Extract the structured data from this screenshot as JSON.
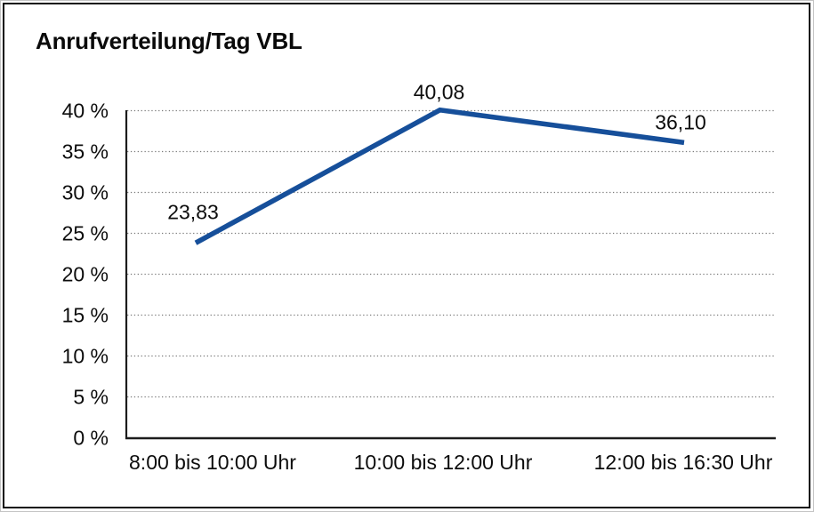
{
  "chart_data": {
    "type": "line",
    "title": "Anrufverteilung/Tag VBL",
    "categories": [
      "8:00 bis 10:00 Uhr",
      "10:00 bis 12:00 Uhr",
      "12:00 bis 16:30 Uhr"
    ],
    "values": [
      23.83,
      40.08,
      36.1
    ],
    "value_labels": [
      "23,83",
      "40,08",
      "36,10"
    ],
    "y_ticks": [
      "0 %",
      "5 %",
      "10 %",
      "15 %",
      "20 %",
      "25 %",
      "30 %",
      "35 %",
      "40 %"
    ],
    "ylim": [
      0,
      40
    ],
    "y_step": 5,
    "xlabel": "",
    "ylabel": "",
    "legend": "none",
    "grid": "horizontal-dotted",
    "line_color": "#164f9a",
    "axis_color": "#1c1c1c",
    "gridline_color": "#7b7b7b",
    "text_color": "#0c0c0c",
    "frame_color": "#0d0d0d",
    "background_color": "#ffffff"
  }
}
